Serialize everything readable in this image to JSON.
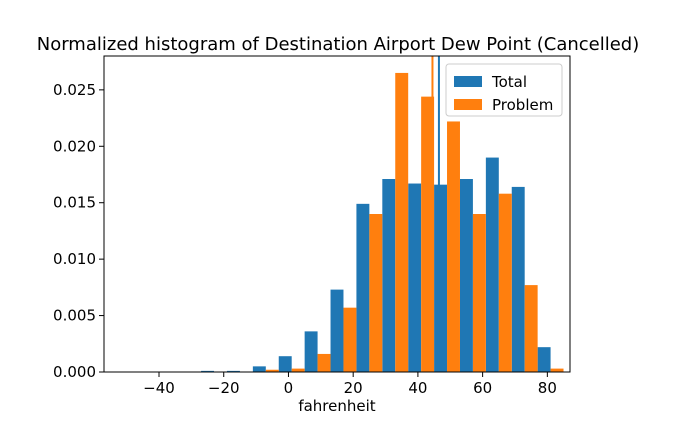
{
  "chart_data": {
    "type": "bar",
    "title": "Normalized histogram of Destination Airport Dew Point (Cancelled)",
    "xlabel": "fahrenheit",
    "ylabel": "",
    "xlim": [
      -57,
      87
    ],
    "ylim": [
      0,
      0.028
    ],
    "xticks": [
      {
        "value": -40,
        "label": "−40"
      },
      {
        "value": -20,
        "label": "−20"
      },
      {
        "value": 0,
        "label": "0"
      },
      {
        "value": 20,
        "label": "20"
      },
      {
        "value": 40,
        "label": "40"
      },
      {
        "value": 60,
        "label": "60"
      },
      {
        "value": 80,
        "label": "80"
      }
    ],
    "yticks": [
      {
        "value": 0,
        "label": "0.000"
      },
      {
        "value": 0.005,
        "label": "0.005"
      },
      {
        "value": 0.01,
        "label": "0.010"
      },
      {
        "value": 0.015,
        "label": "0.015"
      },
      {
        "value": 0.02,
        "label": "0.020"
      },
      {
        "value": 0.025,
        "label": "0.025"
      }
    ],
    "bin_edges": [
      -27,
      -19,
      -11,
      -3,
      5,
      13,
      21,
      29,
      37,
      45,
      53,
      61,
      69,
      77,
      85
    ],
    "series": [
      {
        "name": "Total",
        "color": "#1f77b4",
        "values": [
          0.0001,
          0.0001,
          0.0005,
          0.0014,
          0.0036,
          0.0073,
          0.0149,
          0.0171,
          0.0167,
          0.0166,
          0.0171,
          0.019,
          0.0164,
          0.0022
        ]
      },
      {
        "name": "Problem",
        "color": "#ff7f0e",
        "values": [
          0.0,
          0.0,
          0.0002,
          0.0003,
          0.0016,
          0.0057,
          0.014,
          0.0265,
          0.0244,
          0.0222,
          0.014,
          0.0158,
          0.0077,
          0.0003
        ]
      }
    ],
    "vlines": [
      {
        "series": "Total",
        "x": 46.5,
        "color": "#1f77b4"
      },
      {
        "series": "Problem",
        "x": 44.5,
        "color": "#ff7f0e"
      }
    ],
    "legend": {
      "placement": "top-right",
      "entries": [
        "Total",
        "Problem"
      ]
    },
    "grid": false
  }
}
